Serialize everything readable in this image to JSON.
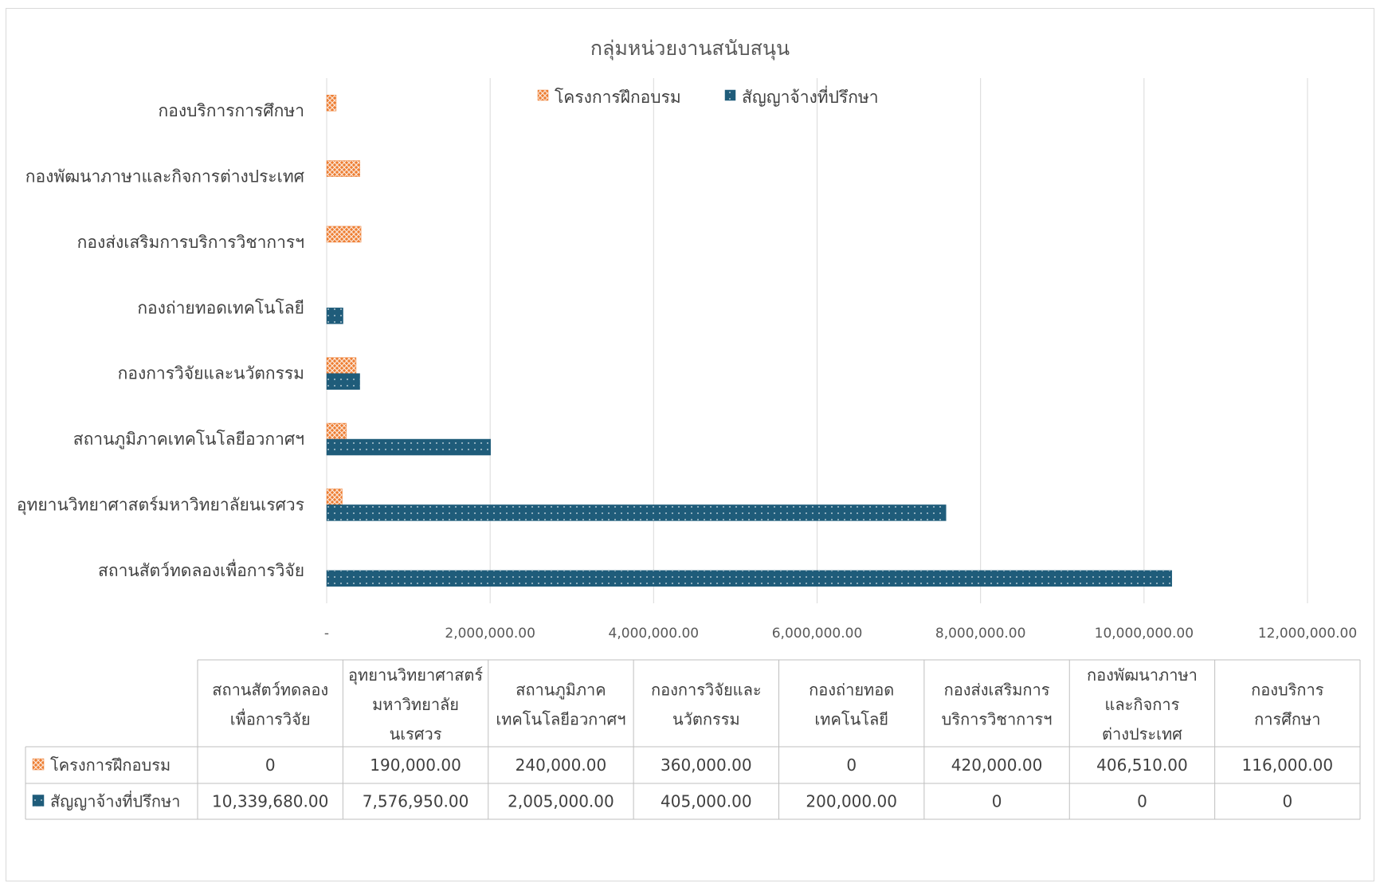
{
  "chart_data": {
    "type": "bar",
    "orientation": "horizontal",
    "title": "กลุ่มหน่วยงานสนับสนุน",
    "categories": [
      "สถานสัตว์ทดลองเพื่อการวิจัย",
      "อุทยานวิทยาศาสตร์มหาวิทยาลัยนเรศวร",
      "สถานภูมิภาคเทคโนโลยีอวกาศฯ",
      "กองการวิจัยและนวัตกรรม",
      "กองถ่ายทอดเทคโนโลยี",
      "กองส่งเสริมการบริการวิชาการฯ",
      "กองพัฒนาภาษาและกิจการต่างประเทศ",
      "กองบริการการศึกษา"
    ],
    "table_headers": [
      [
        "สถานสัตว์ทดลอง",
        "เพื่อการวิจัย"
      ],
      [
        "อุทยานวิทยาศาสตร์",
        "มหาวิทยาลัย",
        "นเรศวร"
      ],
      [
        "สถานภูมิภาค",
        "เทคโนโลยีอวกาศฯ"
      ],
      [
        "กองการวิจัยและ",
        "นวัตกรรม"
      ],
      [
        "กองถ่ายทอด",
        "เทคโนโลยี"
      ],
      [
        "กองส่งเสริมการ",
        "บริการวิชาการฯ"
      ],
      [
        "กองพัฒนาภาษา",
        "และกิจการ",
        "ต่างประเทศ"
      ],
      [
        "กองบริการ",
        "การศึกษา"
      ]
    ],
    "series": [
      {
        "name": "โครงการฝึกอบรม",
        "color": "#ED7D31",
        "pattern": "cross-hatch",
        "values": [
          0,
          190000,
          240000,
          360000,
          0,
          420000,
          406510,
          116000
        ],
        "value_labels": [
          "0",
          "190,000.00",
          "240,000.00",
          "360,000.00",
          "0",
          "420,000.00",
          "406,510.00",
          "116,000.00"
        ]
      },
      {
        "name": "สัญญาจ้างที่ปรึกษา",
        "color": "#1F5C7A",
        "pattern": "dotted",
        "values": [
          10339680,
          7576950,
          2005000,
          405000,
          200000,
          0,
          0,
          0
        ],
        "value_labels": [
          "10,339,680.00",
          "7,576,950.00",
          "2,005,000.00",
          "405,000.00",
          "200,000.00",
          "0",
          "0",
          "0"
        ]
      }
    ],
    "x_ticks": [
      "-",
      "2,000,000.00",
      "4,000,000.00",
      "6,000,000.00",
      "8,000,000.00",
      "10,000,000.00",
      "12,000,000.00"
    ],
    "xlim": [
      0,
      12000000
    ],
    "grid": true,
    "legend_position": "top",
    "data_table": true
  }
}
